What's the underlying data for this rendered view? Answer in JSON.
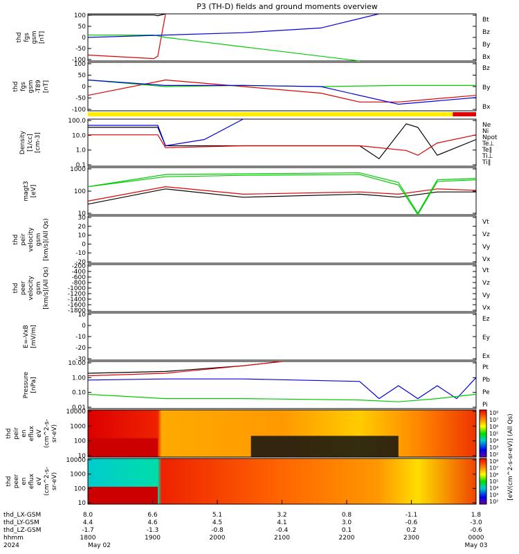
{
  "title": "P3 (TH-D) fields and ground moments overview",
  "colors": {
    "black": "#000000",
    "red": "#dd0000",
    "green": "#00cc00",
    "blue": "#0000dd",
    "yellow": "#ffee00"
  },
  "time_axis": {
    "rows": [
      {
        "label": "thd_LX-GSM",
        "values": [
          "8.0",
          "6.6",
          "5.1",
          "3.2",
          "0.8",
          "-1.1",
          "1.8"
        ]
      },
      {
        "label": "thd_LY-GSM",
        "values": [
          "4.4",
          "4.6",
          "4.5",
          "4.1",
          "3.0",
          "-0.6",
          "-3.0"
        ]
      },
      {
        "label": "thd_LZ-GSM",
        "values": [
          "-1.7",
          "-1.3",
          "-0.8",
          "-0.4",
          "0.1",
          "0.2",
          "-0.6"
        ]
      },
      {
        "label": "hhmm",
        "values": [
          "1800",
          "1900",
          "2000",
          "2100",
          "2200",
          "2300",
          "0000"
        ]
      }
    ],
    "year": "2024",
    "date_start": "May 02",
    "date_end": "May 03"
  },
  "chart_data": [
    {
      "type": "line",
      "ylabel": [
        "thd",
        "fgs",
        "gsm",
        "[nT]"
      ],
      "yticks": [
        "100",
        "50",
        "0",
        "-50",
        "-100"
      ],
      "ylim": [
        -100,
        100
      ],
      "legend": [
        {
          "name": "Bt",
          "color": "black"
        },
        {
          "name": "Bz",
          "color": "red"
        },
        {
          "name": "By",
          "color": "green"
        },
        {
          "name": "Bx",
          "color": "blue"
        }
      ],
      "series": [
        {
          "name": "Bt",
          "x": [
            0,
            0.17,
            0.18,
            0.2
          ],
          "values": [
            95,
            95,
            92,
            100
          ]
        },
        {
          "name": "Bz",
          "x": [
            0,
            0.17,
            0.18,
            0.2
          ],
          "values": [
            -75,
            -90,
            -80,
            100
          ]
        },
        {
          "name": "By",
          "x": [
            0,
            0.17,
            0.2,
            0.4,
            0.6,
            0.7
          ],
          "values": [
            10,
            10,
            0,
            -40,
            -80,
            -100
          ]
        },
        {
          "name": "Bx",
          "x": [
            0,
            0.2,
            0.4,
            0.6,
            0.75
          ],
          "values": [
            0,
            10,
            20,
            40,
            100
          ]
        }
      ]
    },
    {
      "type": "line",
      "ylabel": [
        "thd",
        "fgs",
        "gsm",
        "-T89",
        "[nT]"
      ],
      "yticks": [
        "100",
        "50",
        "0",
        "-50",
        "-100"
      ],
      "ylim": [
        -120,
        100
      ],
      "legend": [
        {
          "name": "Bz",
          "color": "red"
        },
        {
          "name": "By",
          "color": "green"
        },
        {
          "name": "Bx",
          "color": "blue"
        }
      ],
      "series": [
        {
          "name": "Bz",
          "x": [
            0,
            0.2,
            0.4,
            0.6,
            0.7,
            0.8,
            1.0
          ],
          "values": [
            -50,
            20,
            -10,
            -40,
            -80,
            -80,
            -50
          ]
        },
        {
          "name": "By",
          "x": [
            0,
            0.2,
            0.4,
            0.6,
            0.8,
            1.0
          ],
          "values": [
            20,
            -10,
            -5,
            -10,
            -5,
            -5
          ]
        },
        {
          "name": "Bx",
          "x": [
            0,
            0.2,
            0.4,
            0.6,
            0.8,
            1.0
          ],
          "values": [
            20,
            -5,
            -5,
            -10,
            -90,
            -60
          ]
        }
      ]
    },
    {
      "type": "line",
      "ylabel": [
        "Density",
        "[1/cc]",
        "[cm-3]"
      ],
      "yticks": [
        "100.0",
        "10.0",
        "1.0",
        "0.1"
      ],
      "ylim": [
        0.1,
        100
      ],
      "scale": "log",
      "legend": [
        {
          "name": "Ne",
          "color": "red"
        },
        {
          "name": "Ni",
          "color": "black"
        },
        {
          "name": "Npot",
          "color": "blue"
        },
        {
          "name": "Te⊥",
          "color": "red"
        },
        {
          "name": "Te∥",
          "color": "black"
        },
        {
          "name": "Ti⊥",
          "color": "green"
        },
        {
          "name": "Ti∥",
          "color": "green"
        }
      ],
      "series": [
        {
          "name": "Ni",
          "x": [
            0,
            0.18,
            0.2,
            0.4,
            0.7,
            0.75,
            0.82,
            0.85,
            0.9,
            1.0
          ],
          "values": [
            30,
            30,
            2,
            2,
            2,
            0.3,
            50,
            30,
            0.5,
            5
          ]
        },
        {
          "name": "Ne",
          "x": [
            0,
            0.18,
            0.2,
            0.4,
            0.7,
            0.82,
            0.85,
            0.9,
            1.0
          ],
          "values": [
            10,
            10,
            1.5,
            2,
            2,
            1,
            0.5,
            3,
            10
          ]
        },
        {
          "name": "Npot",
          "x": [
            0,
            0.18,
            0.2,
            0.3,
            0.4
          ],
          "values": [
            40,
            40,
            2,
            5,
            100
          ]
        }
      ]
    },
    {
      "type": "line",
      "ylabel": [
        "magt3",
        "[eV]"
      ],
      "yticks": [
        "1000",
        "100",
        "10"
      ],
      "ylim": [
        10,
        5000
      ],
      "scale": "log",
      "series": [
        {
          "name": "Te∥",
          "x": [
            0,
            0.2,
            0.4,
            0.7,
            0.8,
            0.9,
            1.0
          ],
          "values": [
            40,
            300,
            100,
            150,
            100,
            200,
            200
          ]
        },
        {
          "name": "Te⊥",
          "x": [
            0,
            0.2,
            0.4,
            0.7,
            0.8,
            0.9,
            1.0
          ],
          "values": [
            60,
            400,
            150,
            200,
            150,
            300,
            250
          ]
        },
        {
          "name": "Ti∥",
          "x": [
            0,
            0.2,
            0.4,
            0.7,
            0.8,
            0.85,
            0.9,
            1.0
          ],
          "values": [
            400,
            1500,
            1800,
            2000,
            500,
            10,
            800,
            1000
          ]
        },
        {
          "name": "Ti⊥",
          "x": [
            0,
            0.2,
            0.4,
            0.7,
            0.8,
            0.85,
            0.9,
            1.0
          ],
          "values": [
            400,
            2000,
            2200,
            2500,
            700,
            12,
            1000,
            1200
          ]
        }
      ]
    },
    {
      "type": "line",
      "ylabel": [
        "thd",
        "peir",
        "velocity",
        "gsm",
        "[km/s](All Qs)"
      ],
      "yticks": [
        "30",
        "20",
        "10",
        "0",
        "-10",
        "-20"
      ],
      "ylim": [
        -30,
        40
      ],
      "legend": [
        {
          "name": "Vt",
          "color": "black"
        },
        {
          "name": "Vz",
          "color": "red"
        },
        {
          "name": "Vy",
          "color": "green"
        },
        {
          "name": "Vx",
          "color": "blue"
        }
      ],
      "series": []
    },
    {
      "type": "line",
      "ylabel": [
        "thd",
        "peer",
        "velocity",
        "gsm",
        "[km/s](All Qs)"
      ],
      "yticks": [
        "-200",
        "-400",
        "-600",
        "-800",
        "-1000",
        "-1200",
        "-1400",
        "-1600",
        "-1800"
      ],
      "ylim": [
        -1900,
        -100
      ],
      "legend": [
        {
          "name": "Vt",
          "color": "black"
        },
        {
          "name": "Vz",
          "color": "red"
        },
        {
          "name": "Vy",
          "color": "green"
        },
        {
          "name": "Vx",
          "color": "blue"
        }
      ],
      "series": []
    },
    {
      "type": "line",
      "ylabel": [
        "E=-VxB",
        "[mV/m]"
      ],
      "yticks": [
        "10",
        "0",
        "-10",
        "-20",
        "-30"
      ],
      "ylim": [
        -35,
        15
      ],
      "legend": [
        {
          "name": "Ez",
          "color": "red"
        },
        {
          "name": "Ey",
          "color": "green"
        },
        {
          "name": "Ex",
          "color": "blue"
        }
      ],
      "series": []
    },
    {
      "type": "line",
      "ylabel": [
        "Pressure",
        "[nPa]"
      ],
      "yticks": [
        "10.00",
        "1.00",
        "0.10",
        "0.01"
      ],
      "ylim": [
        0.01,
        20
      ],
      "scale": "log",
      "legend": [
        {
          "name": "Pt",
          "color": "black"
        },
        {
          "name": "Pb",
          "color": "red"
        },
        {
          "name": "Pe",
          "color": "green"
        },
        {
          "name": "Pi",
          "color": "blue"
        }
      ],
      "series": [
        {
          "name": "Pt",
          "x": [
            0,
            0.2,
            0.4,
            0.5
          ],
          "values": [
            3,
            4,
            10,
            25
          ]
        },
        {
          "name": "Pb",
          "x": [
            0,
            0.2,
            0.4,
            0.5
          ],
          "values": [
            2,
            3,
            10,
            25
          ]
        },
        {
          "name": "Pi",
          "x": [
            0,
            0.2,
            0.4,
            0.7,
            0.75,
            0.8,
            0.85,
            0.9,
            0.95,
            1.0
          ],
          "values": [
            1,
            1.2,
            1.2,
            0.8,
            0.05,
            0.4,
            0.05,
            0.4,
            0.05,
            1.5
          ]
        },
        {
          "name": "Pe",
          "x": [
            0,
            0.2,
            0.4,
            0.7,
            0.8,
            0.9,
            1.0
          ],
          "values": [
            0.1,
            0.05,
            0.05,
            0.04,
            0.03,
            0.05,
            0.1
          ]
        }
      ]
    },
    {
      "type": "heatmap",
      "ylabel": [
        "thd",
        "peir",
        "en",
        "eflux",
        "eV",
        "(cm^2-s-",
        "sr-eV)"
      ],
      "yticks": [
        "10000",
        "1000",
        "100",
        "10"
      ],
      "ylim": [
        10,
        20000
      ],
      "scale": "log"
    },
    {
      "type": "heatmap",
      "ylabel": [
        "thd",
        "peer",
        "en",
        "eflux",
        "eV",
        "(cm^2-s-",
        "sr-eV)"
      ],
      "yticks": [
        "10000",
        "1000",
        "100",
        "10"
      ],
      "ylim": [
        10,
        20000
      ],
      "scale": "log"
    }
  ],
  "colorbar": {
    "ticks": [
      "10⁸",
      "10⁷",
      "10⁶",
      "10⁵",
      "10⁴",
      "10³",
      "10²"
    ],
    "label": "[eV/(cm^2-s-sr-eV)] (All Qs)"
  }
}
